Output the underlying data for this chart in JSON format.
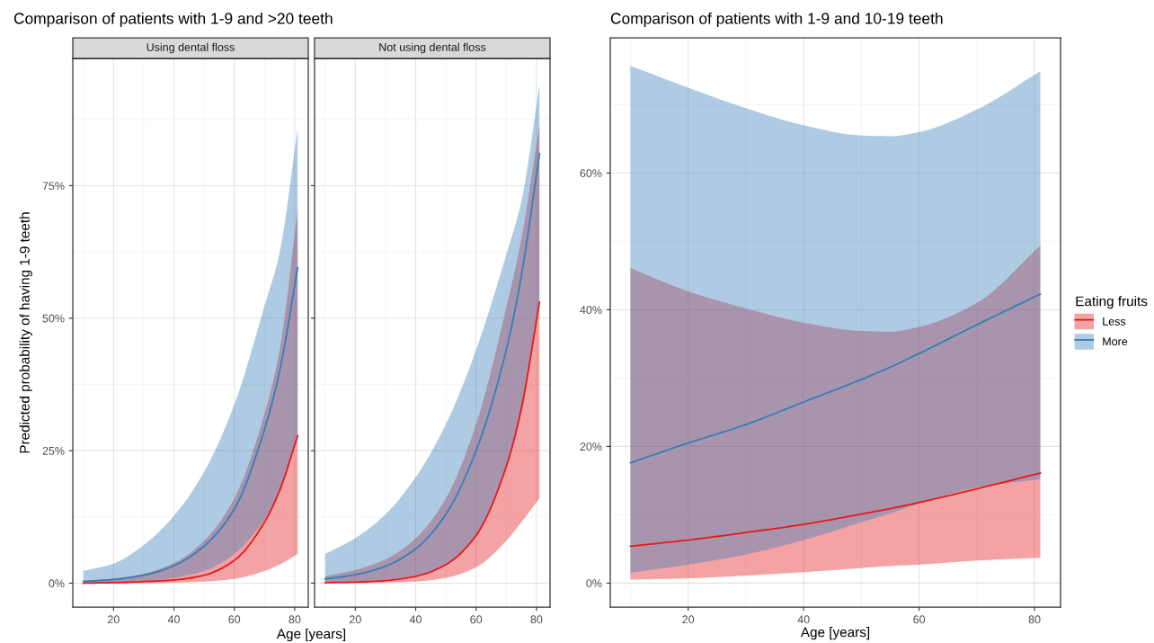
{
  "chart_data": [
    {
      "type": "line",
      "title": "Comparison of patients with 1-9 and >20 teeth",
      "subtitle": "Using dental floss",
      "xlabel": "Age [years]",
      "ylabel": "Predicted probability of having 1-9 teeth",
      "x": [
        10,
        20,
        30,
        40,
        50,
        60,
        70,
        75,
        81
      ],
      "series": [
        {
          "color": "#e41a1c",
          "values": [
            0,
            0.1,
            0.3,
            0.6,
            1.5,
            4.3,
            11.5,
            17.5,
            27.8
          ],
          "lower": [
            0,
            0,
            0,
            0.1,
            0.3,
            0.8,
            2.3,
            3.5,
            5.5
          ],
          "upper": [
            0.5,
            0.9,
            1.8,
            3.8,
            8,
            16,
            32,
            44,
            70.5
          ]
        },
        {
          "color": "#377eb8",
          "values": [
            0.3,
            0.7,
            1.5,
            3.3,
            7,
            14,
            29,
            40,
            59.5
          ],
          "lower": [
            0.1,
            0.2,
            0.4,
            1,
            2.3,
            5.5,
            12,
            17,
            28
          ],
          "upper": [
            2.3,
            3.7,
            7.2,
            12.7,
            21,
            33.7,
            52.3,
            62.4,
            85.8
          ]
        }
      ],
      "xlim": [
        6.5,
        84.5
      ],
      "xticks": [
        20,
        40,
        60,
        80
      ],
      "ylim": [
        -4.5,
        99
      ],
      "yticks": [
        {
          "value": 0,
          "label": "0%"
        },
        {
          "value": 25,
          "label": "25%"
        },
        {
          "value": 50,
          "label": "50%"
        },
        {
          "value": 75,
          "label": "75%"
        }
      ],
      "grid": true,
      "legend": false
    },
    {
      "type": "line",
      "subtitle": "Not using dental floss",
      "x": [
        10,
        20,
        30,
        40,
        50,
        60,
        70,
        75,
        81
      ],
      "series": [
        {
          "color": "#e41a1c",
          "values": [
            0.1,
            0.2,
            0.5,
            1.3,
            3.5,
            9,
            22,
            33,
            53
          ],
          "lower": [
            0,
            0,
            0.1,
            0.3,
            1,
            3,
            8,
            11.5,
            16
          ],
          "upper": [
            1.3,
            2.5,
            4.5,
            8.5,
            16,
            30,
            52,
            65,
            86.5
          ]
        },
        {
          "color": "#377eb8",
          "values": [
            0.8,
            1.6,
            3.2,
            6.5,
            13,
            25,
            44,
            58,
            81
          ],
          "lower": [
            0.1,
            0.3,
            0.7,
            1.5,
            3.5,
            9,
            22,
            32,
            53
          ],
          "upper": [
            5.5,
            8.5,
            13,
            20,
            30,
            44,
            62,
            72,
            94
          ]
        }
      ],
      "xlim": [
        6.5,
        84.5
      ],
      "xticks": [
        20,
        40,
        60,
        80
      ],
      "ylim": [
        -4.5,
        99
      ],
      "yticks": [
        0,
        25,
        50,
        75
      ],
      "tick_labels": "x",
      "grid": true,
      "legend": false
    },
    {
      "type": "line",
      "title": "Comparison of patients with 1-9 and 10-19 teeth",
      "xlabel": "Age [years]",
      "legend_title": "Eating fruits",
      "x": [
        10,
        20,
        30,
        40,
        50,
        55,
        60,
        70,
        81
      ],
      "series": [
        {
          "name": "Less",
          "color": "#e41a1c",
          "values": [
            5.4,
            6.3,
            7.4,
            8.6,
            10.1,
            10.9,
            11.8,
            13.8,
            16.1
          ],
          "lower": [
            0.5,
            0.7,
            1.1,
            1.6,
            2.2,
            2.5,
            2.7,
            3.3,
            3.7
          ],
          "upper": [
            46.1,
            42.7,
            40.2,
            38.1,
            36.9,
            36.8,
            37.5,
            41,
            49.4
          ]
        },
        {
          "name": "More",
          "color": "#377eb8",
          "values": [
            17.6,
            20.5,
            23.2,
            26.5,
            29.8,
            31.6,
            33.6,
            37.8,
            42.3
          ],
          "lower": [
            1.5,
            2.7,
            4.2,
            6.3,
            8.9,
            10.2,
            11.6,
            14,
            15.2
          ],
          "upper": [
            75.7,
            72.5,
            69.5,
            67,
            65.5,
            65.4,
            66,
            69.3,
            74.9
          ]
        }
      ],
      "xlim": [
        6.5,
        84.5
      ],
      "xticks": [
        20,
        40,
        60,
        80
      ],
      "ylim": [
        -3.5,
        79.8
      ],
      "yticks": [
        {
          "value": 0,
          "label": "0%"
        },
        {
          "value": 20,
          "label": "20%"
        },
        {
          "value": 40,
          "label": "40%"
        },
        {
          "value": 60,
          "label": "60%"
        }
      ],
      "grid": true,
      "legend": "right"
    }
  ]
}
